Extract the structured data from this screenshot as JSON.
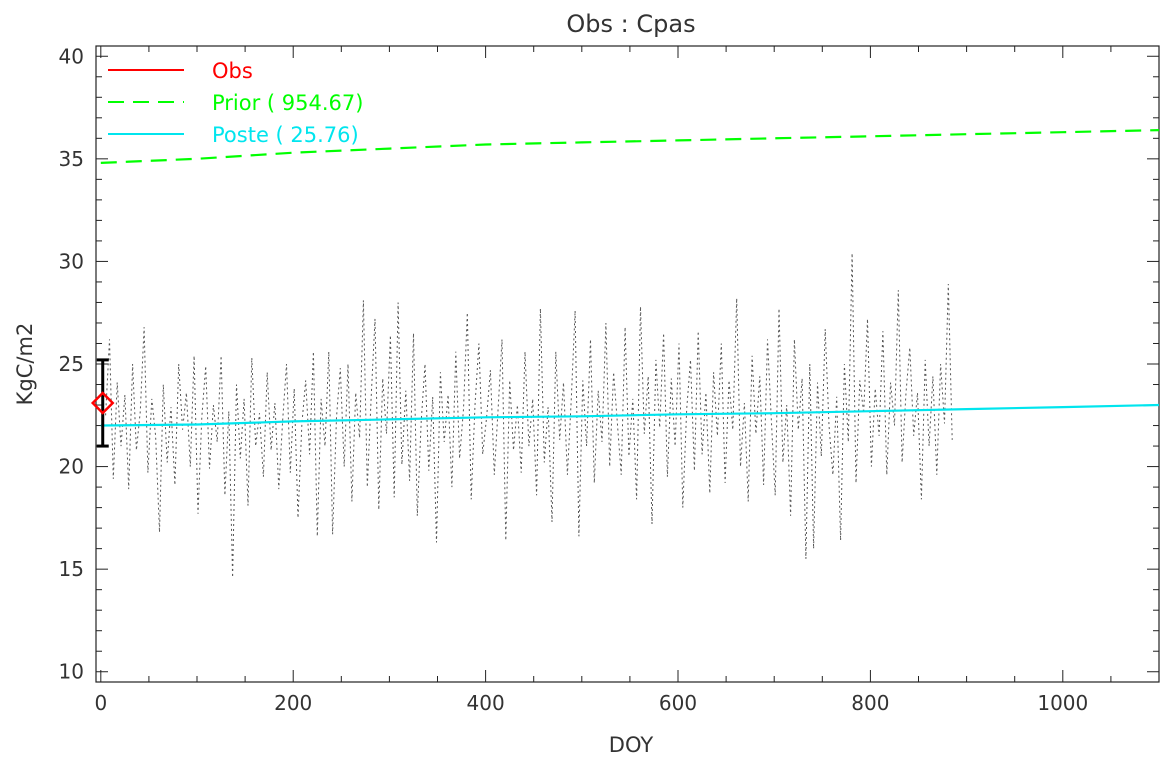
{
  "chart_data": {
    "type": "line",
    "title": "Obs : Cpas",
    "xlabel": "DOY",
    "ylabel": "KgC/m2",
    "xlim": [
      -5,
      1100
    ],
    "ylim": [
      9.5,
      40.5
    ],
    "xticks": [
      0,
      200,
      400,
      600,
      800,
      1000
    ],
    "yticks": [
      10,
      15,
      20,
      25,
      30,
      35,
      40
    ],
    "x_tick_labels": [
      "0",
      "200",
      "400",
      "600",
      "800",
      "1000"
    ],
    "y_tick_labels": [
      "10",
      "15",
      "20",
      "25",
      "30",
      "35",
      "40"
    ],
    "legend_position": "top-left",
    "legend": [
      {
        "label": "Obs",
        "color": "#ff0000",
        "style": "solid"
      },
      {
        "label": "Prior ( 954.67)",
        "color": "#00ff00",
        "style": "dashed"
      },
      {
        "label": "Poste ( 25.76)",
        "color": "#00e5ee",
        "style": "solid"
      }
    ],
    "series": [
      {
        "name": "Prior ( 954.67)",
        "color": "#00ff00",
        "style": "dashed",
        "x": [
          0,
          100,
          200,
          300,
          400,
          500,
          600,
          700,
          800,
          900,
          1000,
          1100
        ],
        "y": [
          34.8,
          35.0,
          35.3,
          35.5,
          35.7,
          35.8,
          35.9,
          36.0,
          36.1,
          36.2,
          36.3,
          36.4
        ]
      },
      {
        "name": "Poste ( 25.76)",
        "color": "#00e5ee",
        "style": "solid",
        "x": [
          0,
          100,
          200,
          300,
          400,
          500,
          600,
          700,
          800,
          900,
          1000,
          1100
        ],
        "y": [
          22.0,
          22.05,
          22.2,
          22.3,
          22.4,
          22.45,
          22.55,
          22.6,
          22.7,
          22.8,
          22.9,
          23.0
        ]
      },
      {
        "color": "#555555",
        "style": "dotted",
        "x_start": 5,
        "x_step": 4,
        "y": [
          22.5,
          26.2,
          19.4,
          24.1,
          21.0,
          23.5,
          18.9,
          25.0,
          20.8,
          22.7,
          26.8,
          19.7,
          23.3,
          21.5,
          16.8,
          24.0,
          20.2,
          22.9,
          19.1,
          25.0,
          21.8,
          23.6,
          20.0,
          25.4,
          17.7,
          22.4,
          24.9,
          19.9,
          23.0,
          21.2,
          25.4,
          18.6,
          22.7,
          14.6,
          24.0,
          20.4,
          23.3,
          18.1,
          25.3,
          21.0,
          22.6,
          19.5,
          24.6,
          20.8,
          23.1,
          18.9,
          22.2,
          25.0,
          19.7,
          23.8,
          17.5,
          22.1,
          24.2,
          20.6,
          25.6,
          16.6,
          23.3,
          21.0,
          25.6,
          16.7,
          22.4,
          24.8,
          20.0,
          25.0,
          18.3,
          23.6,
          21.4,
          28.1,
          19.0,
          23.3,
          27.2,
          17.9,
          24.3,
          21.6,
          26.4,
          18.5,
          28.0,
          20.1,
          23.7,
          19.3,
          26.5,
          17.6,
          22.2,
          25.0,
          19.8,
          23.4,
          16.3,
          24.6,
          21.2,
          23.5,
          19.0,
          25.6,
          20.4,
          22.8,
          27.5,
          18.4,
          23.0,
          26.0,
          20.6,
          22.4,
          24.7,
          19.6,
          22.8,
          26.2,
          16.4,
          24.2,
          20.8,
          23.0,
          19.7,
          25.6,
          21.0,
          23.3,
          18.6,
          27.7,
          20.2,
          22.9,
          17.3,
          25.6,
          21.3,
          24.1,
          19.6,
          23.2,
          27.6,
          16.6,
          24.2,
          21.0,
          26.2,
          19.2,
          23.7,
          21.2,
          27.0,
          20.0,
          24.6,
          22.1,
          19.6,
          26.8,
          20.5,
          23.3,
          18.4,
          27.8,
          21.6,
          24.4,
          17.2,
          25.2,
          21.9,
          26.5,
          19.5,
          24.3,
          21.0,
          26.0,
          18.0,
          22.8,
          25.2,
          19.8,
          26.6,
          20.6,
          23.6,
          18.7,
          24.6,
          21.5,
          26.0,
          19.2,
          24.2,
          21.8,
          28.2,
          20.0,
          23.1,
          18.3,
          25.4,
          21.6,
          24.4,
          19.1,
          26.2,
          22.3,
          18.6,
          27.7,
          20.2,
          23.0,
          17.6,
          26.2,
          21.8,
          24.3,
          15.5,
          25.0,
          16.0,
          24.1,
          20.5,
          26.7,
          22.0,
          19.6,
          23.4,
          16.4,
          25.0,
          21.2,
          30.4,
          19.2,
          24.2,
          22.6,
          27.2,
          20.0,
          23.8,
          21.5,
          26.6,
          19.6,
          24.1,
          22.0,
          28.6,
          20.2,
          23.6,
          25.8,
          21.5,
          23.6,
          18.4,
          25.2,
          21.0,
          24.4,
          19.6,
          25.0,
          22.1,
          28.9,
          21.3
        ]
      }
    ],
    "observation": {
      "x": 2,
      "y": 23.1,
      "error_low": 21.0,
      "error_high": 25.2,
      "marker": "diamond",
      "marker_color": "#ff0000",
      "error_color": "#000000"
    }
  }
}
